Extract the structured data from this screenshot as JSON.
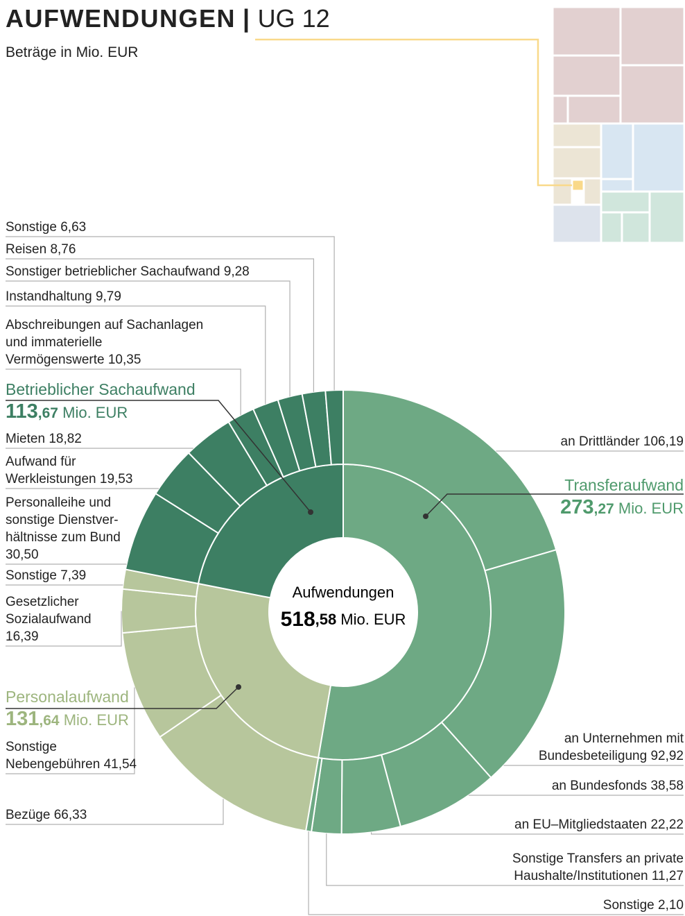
{
  "chart_data": {
    "type": "sunburst",
    "title": "AUFWENDUNGEN",
    "title_code": "UG 12",
    "subtitle": "Beträge in Mio. EUR",
    "unit": "Mio. EUR",
    "center": {
      "label": "Aufwendungen",
      "value": 518.58,
      "value_label": "518,58"
    },
    "groups": [
      {
        "name": "Transferaufwand",
        "value": 273.27,
        "value_label": "273,27",
        "color": "#6ea984",
        "label_color": "#4f9a6c",
        "children": [
          {
            "name": "an Drittländer",
            "value": 106.19,
            "value_label": "106,19"
          },
          {
            "name": "an Unternehmen mit\nBundesbeteiligung",
            "value": 92.92,
            "value_label": "92,92"
          },
          {
            "name": "an Bundesfonds",
            "value": 38.58,
            "value_label": "38,58"
          },
          {
            "name": "an EU–Mitgliedstaaten",
            "value": 22.22,
            "value_label": "22,22"
          },
          {
            "name": "Sonstige Transfers an private\nHaushalte/Institutionen",
            "value": 11.27,
            "value_label": "11,27"
          },
          {
            "name": "Sonstige",
            "value": 2.1,
            "value_label": "2,10"
          }
        ]
      },
      {
        "name": "Personalaufwand",
        "value": 131.64,
        "value_label": "131,64",
        "color": "#b7c69c",
        "label_color": "#9db57e",
        "children": [
          {
            "name": "Bezüge",
            "value": 66.33,
            "value_label": "66,33"
          },
          {
            "name": "Sonstige\nNebengebühren",
            "value": 41.54,
            "value_label": "41,54"
          },
          {
            "name": "Gesetzlicher\nSozialaufwand",
            "value": 16.39,
            "value_label": "16,39"
          },
          {
            "name": "Sonstige",
            "value": 7.39,
            "value_label": "7,39"
          }
        ]
      },
      {
        "name": "Betrieblicher Sachaufwand",
        "value": 113.67,
        "value_label": "113,67",
        "color": "#3d7f63",
        "label_color": "#3d7f63",
        "children": [
          {
            "name": "Personalleihe und\nsonstige Dienstver-\nhältnisse zum Bund",
            "value": 30.5,
            "value_label": "30,50"
          },
          {
            "name": "Aufwand für\nWerkleistungen",
            "value": 19.53,
            "value_label": "19,53"
          },
          {
            "name": "Mieten",
            "value": 18.82,
            "value_label": "18,82"
          },
          {
            "name": "Abschreibungen auf Sachanlagen\nund immaterielle\nVermögenswerte",
            "value": 10.35,
            "value_label": "10,35"
          },
          {
            "name": "Instandhaltung",
            "value": 9.79,
            "value_label": "9,79"
          },
          {
            "name": "Sonstiger betrieblicher Sachaufwand",
            "value": 9.28,
            "value_label": "9,28"
          },
          {
            "name": "Reisen",
            "value": 8.76,
            "value_label": "8,76"
          },
          {
            "name": "Sonstige",
            "value": 6.63,
            "value_label": "6,63"
          }
        ]
      }
    ]
  }
}
